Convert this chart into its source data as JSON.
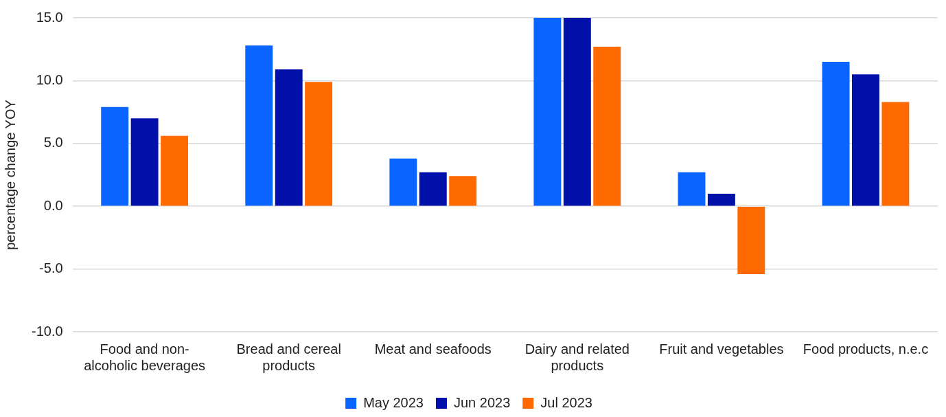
{
  "chart_data": {
    "type": "bar",
    "ylabel": "percentage change YOY",
    "categories": [
      "Food and non-alcoholic beverages",
      "Bread and cereal products",
      "Meat and seafoods",
      "Dairy and related products",
      "Fruit and vegetables",
      "Food products, n.e.c"
    ],
    "series": [
      {
        "name": "May 2023",
        "color": "#0a64ff",
        "values": [
          7.9,
          12.8,
          3.8,
          15.0,
          2.7,
          11.5
        ]
      },
      {
        "name": "Jun 2023",
        "color": "#0010a8",
        "values": [
          7.0,
          10.9,
          2.7,
          15.0,
          1.0,
          10.5
        ]
      },
      {
        "name": "Jul 2023",
        "color": "#ff6a00",
        "values": [
          5.6,
          9.9,
          2.4,
          12.7,
          -5.4,
          8.3
        ]
      }
    ],
    "ylim": [
      -10,
      15
    ],
    "yticks": [
      {
        "value": -10,
        "label": "-10.0"
      },
      {
        "value": -5,
        "label": "-5.0"
      },
      {
        "value": 0,
        "label": "0.0"
      },
      {
        "value": 5,
        "label": "5.0"
      },
      {
        "value": 10,
        "label": "10.0"
      },
      {
        "value": 15,
        "label": "15.0"
      }
    ],
    "grid": "y",
    "legend": "bottom"
  }
}
